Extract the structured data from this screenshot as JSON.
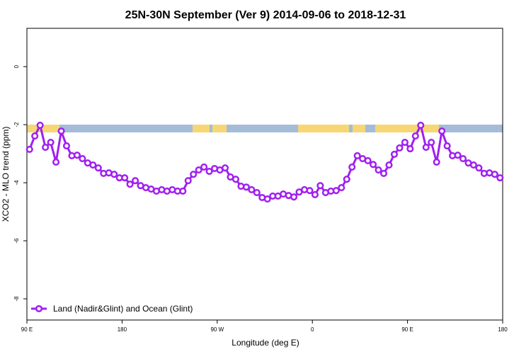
{
  "chart_data": {
    "type": "line",
    "title": "25N-30N September (Ver 9)   2014-09-06 to 2018-12-31",
    "x_label": "Longitude (deg E)",
    "y_label": "XCO2 - MLO trend (ppm)",
    "xlim": [
      90,
      540
    ],
    "ylim": [
      -8.73,
      1.32
    ],
    "xticks": [
      {
        "value": 90,
        "label": "90 E"
      },
      180,
      {
        "value": 270,
        "label": "90 W"
      },
      {
        "value": 360,
        "label": "0"
      },
      {
        "value": 450,
        "label": "90 E"
      },
      {
        "value": 540,
        "label": "180"
      }
    ],
    "yticks": [
      0,
      -2,
      -4,
      -6,
      -8
    ],
    "legend_position": "bottom-left",
    "x": [
      92.5,
      97.5,
      102.5,
      107.5,
      112.5,
      117.5,
      122.5,
      127.5,
      132.5,
      137.5,
      142.5,
      147.5,
      152.5,
      157.5,
      162.5,
      167.5,
      172.5,
      177.5,
      182.5,
      187.5,
      192.5,
      197.5,
      202.5,
      207.5,
      212.5,
      217.5,
      222.5,
      227.5,
      232.5,
      237.5,
      242.5,
      247.5,
      252.5,
      257.5,
      262.5,
      267.5,
      272.5,
      277.5,
      282.5,
      287.5,
      292.5,
      297.5,
      302.5,
      307.5,
      312.5,
      317.5,
      322.5,
      327.5,
      332.5,
      337.5,
      342.5,
      347.5,
      352.5,
      357.5,
      362.5,
      367.5,
      372.5,
      377.5,
      382.5,
      387.5,
      392.5,
      397.5,
      402.5,
      407.5,
      412.5,
      417.5,
      422.5,
      427.5,
      432.5,
      437.5,
      442.5,
      447.5,
      452.5,
      457.5,
      462.5,
      467.5,
      472.5,
      477.5,
      482.5,
      487.5,
      492.5,
      497.5,
      502.5,
      507.5,
      512.5,
      517.5,
      522.5,
      527.5,
      532.5,
      537.5
    ],
    "series": [
      {
        "name": "Land (Nadir&Glint) and Ocean (Glint)",
        "color": "#a020f0",
        "values": [
          -2.85,
          -2.39,
          -2.02,
          -2.78,
          -2.61,
          -3.29,
          -2.22,
          -2.73,
          -3.07,
          -3.05,
          -3.17,
          -3.32,
          -3.39,
          -3.49,
          -3.68,
          -3.66,
          -3.71,
          -3.83,
          -3.83,
          -4.05,
          -3.93,
          -4.1,
          -4.17,
          -4.22,
          -4.29,
          -4.24,
          -4.29,
          -4.24,
          -4.29,
          -4.29,
          -3.93,
          -3.71,
          -3.56,
          -3.46,
          -3.61,
          -3.51,
          -3.56,
          -3.49,
          -3.8,
          -3.88,
          -4.12,
          -4.15,
          -4.24,
          -4.34,
          -4.51,
          -4.56,
          -4.46,
          -4.46,
          -4.39,
          -4.44,
          -4.49,
          -4.32,
          -4.24,
          -4.27,
          -4.41,
          -4.1,
          -4.34,
          -4.29,
          -4.27,
          -4.17,
          -3.88,
          -3.46,
          -3.07,
          -3.17,
          -3.24,
          -3.37,
          -3.56,
          -3.68,
          -3.39,
          -3.02,
          -2.8,
          -2.61,
          -2.83,
          -2.39,
          -2.02,
          -2.78,
          -2.61,
          -3.29,
          -2.22,
          -2.73,
          -3.07,
          -3.05,
          -3.17,
          -3.32,
          -3.39,
          -3.49,
          -3.68,
          -3.66,
          -3.71,
          -3.83
        ]
      }
    ]
  }
}
